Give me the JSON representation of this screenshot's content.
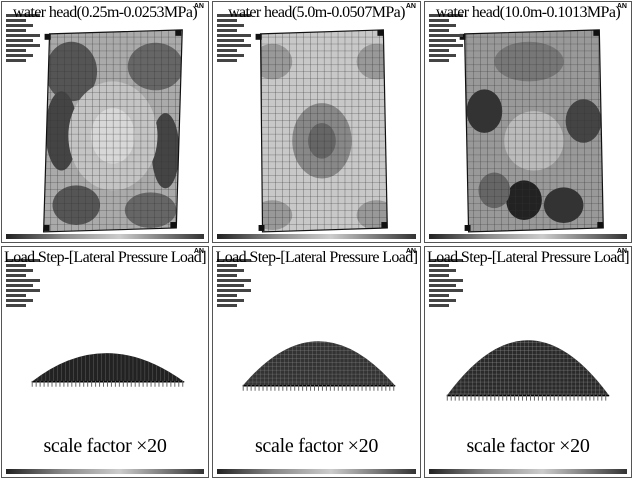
{
  "top_panels": [
    {
      "title": "water head(0.25m-0.0253MPa)",
      "tag": "AN"
    },
    {
      "title": "water head(5.0m-0.0507MPa)",
      "tag": "AN"
    },
    {
      "title": "water head(10.0m-0.1013MPa)",
      "tag": "AN"
    }
  ],
  "bottom_panels": [
    {
      "title": "Load Step-[Lateral Pressure Load]",
      "tag": "AN",
      "scale": "scale factor ×20"
    },
    {
      "title": "Load Step-[Lateral Pressure Load]",
      "tag": "AN",
      "scale": "scale factor ×20"
    },
    {
      "title": "Load Step-[Lateral Pressure Load]",
      "tag": "AN",
      "scale": "scale factor ×20"
    }
  ]
}
